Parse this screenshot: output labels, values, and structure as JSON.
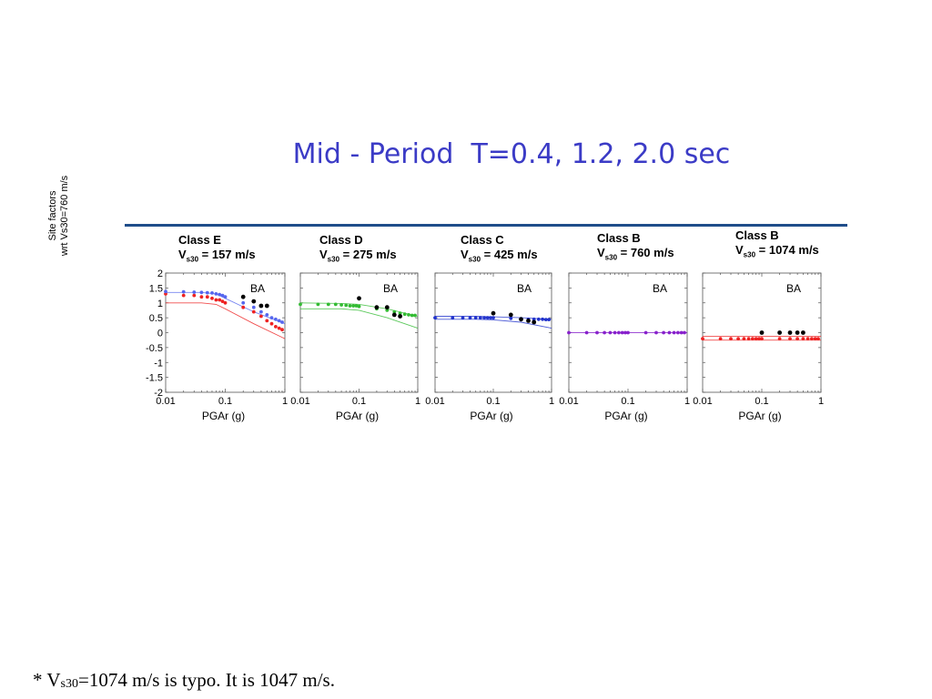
{
  "title": "Mid - Period  T=0.4, 1.2, 2.0 sec",
  "y_axis_label_line1": "Site factors",
  "y_axis_label_line2": "wrt Vs30=760 m/s",
  "footnote": {
    "star": "* V",
    "sub": "s30",
    "rest": "=1074 m/s is typo. It is 1047 m/s."
  },
  "colors": {
    "title": "#3b3bc6",
    "rule": "#1f4d8a",
    "classE_red": "#ee2222",
    "classE_blue": "#5566ee",
    "classD": "#33bb33",
    "classC": "#2233cc",
    "classB760": "#8822cc",
    "classB1074": "#ee2222"
  },
  "chart_data": [
    {
      "type": "scatter",
      "panel": "Class E",
      "header_class": "Class E",
      "header_vs_prefix": "V",
      "header_vs_sub": "s30",
      "header_vs_value": " = 157 m/s",
      "annotation": "BA",
      "xscale": "log",
      "xlim": [
        0.01,
        1
      ],
      "ylim": [
        -2,
        2
      ],
      "xlabel": "PGAr (g)",
      "xticks": [
        "0.01",
        "0.1",
        "1"
      ],
      "yticks": [
        "2",
        "1.5",
        "1",
        "0.5",
        "0",
        "-0.5",
        "-1",
        "-1.5",
        "-2"
      ],
      "series": [
        {
          "color": "#ee2222",
          "style": "line",
          "x": [
            0.01,
            0.04,
            0.07,
            0.1,
            0.3,
            1
          ],
          "y": [
            1.0,
            1.0,
            0.95,
            0.8,
            0.3,
            -0.2
          ]
        },
        {
          "color": "#5566ee",
          "style": "line",
          "x": [
            0.01,
            0.04,
            0.07,
            0.1,
            0.3,
            1
          ],
          "y": [
            1.35,
            1.35,
            1.3,
            1.15,
            0.7,
            0.3
          ]
        },
        {
          "color": "#ee2222",
          "style": "markers",
          "x": [
            0.01,
            0.02,
            0.03,
            0.04,
            0.05,
            0.06,
            0.07,
            0.08,
            0.09,
            0.1,
            0.2,
            0.3,
            0.4,
            0.5,
            0.6,
            0.7,
            0.8,
            0.9
          ],
          "y": [
            1.3,
            1.25,
            1.25,
            1.2,
            1.2,
            1.15,
            1.1,
            1.1,
            1.05,
            1.0,
            0.85,
            0.7,
            0.55,
            0.4,
            0.3,
            0.2,
            0.15,
            0.1
          ]
        },
        {
          "color": "#5566ee",
          "style": "markers",
          "x": [
            0.01,
            0.02,
            0.03,
            0.04,
            0.05,
            0.06,
            0.07,
            0.08,
            0.09,
            0.1,
            0.2,
            0.3,
            0.4,
            0.5,
            0.6,
            0.7,
            0.8,
            0.9
          ],
          "y": [
            1.38,
            1.37,
            1.36,
            1.35,
            1.34,
            1.33,
            1.3,
            1.28,
            1.25,
            1.2,
            1.0,
            0.85,
            0.7,
            0.6,
            0.5,
            0.45,
            0.4,
            0.35
          ]
        },
        {
          "color": "#000000",
          "style": "markers",
          "x": [
            0.2,
            0.3,
            0.4,
            0.5
          ],
          "y": [
            1.2,
            1.05,
            0.9,
            0.9
          ]
        }
      ]
    },
    {
      "type": "scatter",
      "panel": "Class D",
      "header_class": "Class D",
      "header_vs_prefix": "V",
      "header_vs_sub": "s30",
      "header_vs_value": " = 275 m/s",
      "annotation": "BA",
      "xscale": "log",
      "xlim": [
        0.01,
        1
      ],
      "ylim": [
        -2,
        2
      ],
      "xlabel": "PGAr (g)",
      "xticks": [
        "0.01",
        "0.1",
        "1"
      ],
      "series": [
        {
          "color": "#33bb33",
          "style": "line",
          "x": [
            0.01,
            0.05,
            0.1,
            0.3,
            1
          ],
          "y": [
            0.8,
            0.8,
            0.75,
            0.5,
            0.15
          ]
        },
        {
          "color": "#33bb33",
          "style": "line",
          "x": [
            0.01,
            0.05,
            0.1,
            0.3,
            1
          ],
          "y": [
            1.0,
            0.98,
            0.95,
            0.8,
            0.55
          ]
        },
        {
          "color": "#33bb33",
          "style": "markers",
          "x": [
            0.01,
            0.02,
            0.03,
            0.04,
            0.05,
            0.06,
            0.07,
            0.08,
            0.09,
            0.1,
            0.2,
            0.3,
            0.4,
            0.5,
            0.6,
            0.7,
            0.8,
            0.9
          ],
          "y": [
            0.95,
            0.95,
            0.95,
            0.95,
            0.93,
            0.92,
            0.9,
            0.9,
            0.9,
            0.88,
            0.8,
            0.75,
            0.7,
            0.65,
            0.62,
            0.6,
            0.58,
            0.58
          ]
        },
        {
          "color": "#000000",
          "style": "markers",
          "x": [
            0.1,
            0.2,
            0.3,
            0.4,
            0.5
          ],
          "y": [
            1.15,
            0.85,
            0.85,
            0.6,
            0.55
          ]
        }
      ]
    },
    {
      "type": "scatter",
      "panel": "Class C",
      "header_class": "Class C",
      "header_vs_prefix": "V",
      "header_vs_sub": "s30",
      "header_vs_value": " = 425 m/s",
      "annotation": "BA",
      "xscale": "log",
      "xlim": [
        0.01,
        1
      ],
      "ylim": [
        -2,
        2
      ],
      "xlabel": "PGAr (g)",
      "xticks": [
        "0.01",
        "0.1",
        "1"
      ],
      "series": [
        {
          "color": "#2233cc",
          "style": "line",
          "x": [
            0.01,
            0.05,
            0.1,
            0.3,
            1
          ],
          "y": [
            0.45,
            0.45,
            0.43,
            0.35,
            0.15
          ]
        },
        {
          "color": "#2233cc",
          "style": "line",
          "x": [
            0.01,
            0.05,
            0.1,
            0.3,
            1
          ],
          "y": [
            0.55,
            0.55,
            0.53,
            0.5,
            0.45
          ]
        },
        {
          "color": "#2233cc",
          "style": "markers",
          "x": [
            0.01,
            0.02,
            0.03,
            0.04,
            0.05,
            0.06,
            0.07,
            0.08,
            0.09,
            0.1,
            0.2,
            0.3,
            0.4,
            0.5,
            0.6,
            0.7,
            0.8,
            0.9
          ],
          "y": [
            0.5,
            0.5,
            0.5,
            0.5,
            0.5,
            0.5,
            0.5,
            0.5,
            0.5,
            0.5,
            0.48,
            0.47,
            0.45,
            0.45,
            0.45,
            0.45,
            0.44,
            0.44
          ]
        },
        {
          "color": "#000000",
          "style": "markers",
          "x": [
            0.1,
            0.2,
            0.3,
            0.4,
            0.5
          ],
          "y": [
            0.65,
            0.6,
            0.45,
            0.4,
            0.35
          ]
        }
      ]
    },
    {
      "type": "scatter",
      "panel": "Class B 760",
      "header_class": "Class B",
      "header_vs_prefix": "V",
      "header_vs_sub": "s30",
      "header_vs_value": " = 760 m/s",
      "annotation": "BA",
      "xscale": "log",
      "xlim": [
        0.01,
        1
      ],
      "ylim": [
        -2,
        2
      ],
      "xlabel": "PGAr (g)",
      "xticks": [
        "0.01",
        "0.1",
        "1"
      ],
      "series": [
        {
          "color": "#8822cc",
          "style": "line",
          "x": [
            0.01,
            1
          ],
          "y": [
            0,
            0
          ]
        },
        {
          "color": "#8822cc",
          "style": "markers",
          "x": [
            0.01,
            0.02,
            0.03,
            0.04,
            0.05,
            0.06,
            0.07,
            0.08,
            0.09,
            0.1,
            0.2,
            0.3,
            0.4,
            0.5,
            0.6,
            0.7,
            0.8,
            0.9
          ],
          "y": [
            0,
            0,
            0,
            0,
            0,
            0,
            0,
            0,
            0,
            0,
            0,
            0,
            0,
            0,
            0,
            0,
            0,
            0
          ]
        }
      ]
    },
    {
      "type": "scatter",
      "panel": "Class B 1074",
      "header_class": "Class B",
      "header_vs_prefix": "V",
      "header_vs_sub": "s30",
      "header_vs_value": " = 1074 m/s",
      "annotation": "BA",
      "xscale": "log",
      "xlim": [
        0.01,
        1
      ],
      "ylim": [
        -2,
        2
      ],
      "xlabel": "PGAr (g)",
      "xticks": [
        "0.01",
        "0.1",
        "1"
      ],
      "series": [
        {
          "color": "#ee2222",
          "style": "line",
          "x": [
            0.01,
            1
          ],
          "y": [
            -0.12,
            -0.12
          ]
        },
        {
          "color": "#ee2222",
          "style": "line",
          "x": [
            0.01,
            1
          ],
          "y": [
            -0.25,
            -0.25
          ]
        },
        {
          "color": "#ee2222",
          "style": "markers",
          "x": [
            0.01,
            0.02,
            0.03,
            0.04,
            0.05,
            0.06,
            0.07,
            0.08,
            0.09,
            0.1,
            0.2,
            0.3,
            0.4,
            0.5,
            0.6,
            0.7,
            0.8,
            0.9
          ],
          "y": [
            -0.2,
            -0.2,
            -0.2,
            -0.2,
            -0.2,
            -0.2,
            -0.2,
            -0.2,
            -0.2,
            -0.2,
            -0.2,
            -0.2,
            -0.2,
            -0.2,
            -0.2,
            -0.2,
            -0.2,
            -0.2
          ]
        },
        {
          "color": "#000000",
          "style": "markers",
          "x": [
            0.1,
            0.2,
            0.3,
            0.4,
            0.5
          ],
          "y": [
            0.0,
            0.0,
            0.0,
            0.0,
            0.0
          ]
        }
      ]
    }
  ]
}
